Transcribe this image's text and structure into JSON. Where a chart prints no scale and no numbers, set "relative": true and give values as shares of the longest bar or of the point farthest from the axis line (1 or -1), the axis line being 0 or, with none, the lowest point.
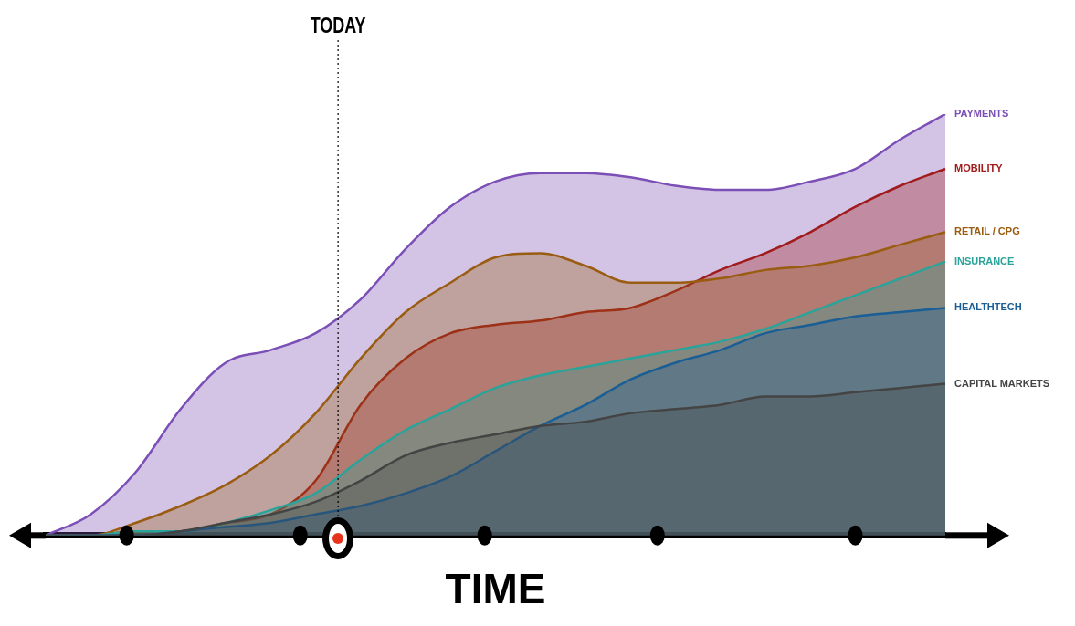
{
  "chart_data": {
    "type": "area",
    "relative": true,
    "xlabel": "TIME",
    "categories": [
      null,
      null,
      null,
      null,
      null,
      null,
      null,
      null,
      null,
      null,
      null,
      null,
      null,
      null,
      null,
      null,
      null,
      null,
      null,
      null,
      null
    ],
    "series": [
      {
        "name": "PAYMENTS",
        "color": "#7b4fb5",
        "values": [
          0,
          0.05,
          0.15,
          0.3,
          0.41,
          0.44,
          0.48,
          0.56,
          0.68,
          0.78,
          0.84,
          0.86,
          0.86,
          0.85,
          0.83,
          0.82,
          0.82,
          0.84,
          0.87,
          0.94,
          1
        ]
      },
      {
        "name": "MOBILITY",
        "color": "#a01c1c",
        "values": [
          0,
          0,
          0.01,
          0.01,
          0.03,
          0.05,
          0.13,
          0.31,
          0.42,
          0.48,
          0.5,
          0.51,
          0.53,
          0.54,
          0.58,
          0.63,
          0.67,
          0.72,
          0.78,
          0.83,
          0.87
        ]
      },
      {
        "name": "RETAIL / CPG",
        "color": "#9a5c10",
        "values": [
          0,
          0,
          0.03,
          0.07,
          0.12,
          0.19,
          0.29,
          0.42,
          0.53,
          0.6,
          0.66,
          0.67,
          0.64,
          0.6,
          0.6,
          0.61,
          0.63,
          0.64,
          0.66,
          0.69,
          0.72
        ]
      },
      {
        "name": "INSURANCE",
        "color": "#2aa39a",
        "values": [
          0,
          0,
          0.01,
          0.01,
          0.03,
          0.06,
          0.1,
          0.18,
          0.25,
          0.3,
          0.35,
          0.38,
          0.4,
          0.42,
          0.44,
          0.46,
          0.49,
          0.53,
          0.57,
          0.61,
          0.65
        ]
      },
      {
        "name": "HEALTHTECH",
        "color": "#1a5e96",
        "values": [
          0,
          0,
          0,
          0.01,
          0.02,
          0.03,
          0.05,
          0.07,
          0.1,
          0.14,
          0.2,
          0.26,
          0.31,
          0.37,
          0.41,
          0.44,
          0.48,
          0.5,
          0.52,
          0.53,
          0.54
        ]
      },
      {
        "name": "CAPITAL MARKETS",
        "color": "#444444",
        "values": [
          0,
          0,
          0,
          0.01,
          0.03,
          0.05,
          0.08,
          0.13,
          0.19,
          0.22,
          0.24,
          0.26,
          0.27,
          0.29,
          0.3,
          0.31,
          0.33,
          0.33,
          0.34,
          0.35,
          0.36
        ]
      }
    ],
    "annotations": [
      "TODAY"
    ],
    "legend": false,
    "grid": false,
    "marker": "none",
    "line_style": "solid"
  }
}
